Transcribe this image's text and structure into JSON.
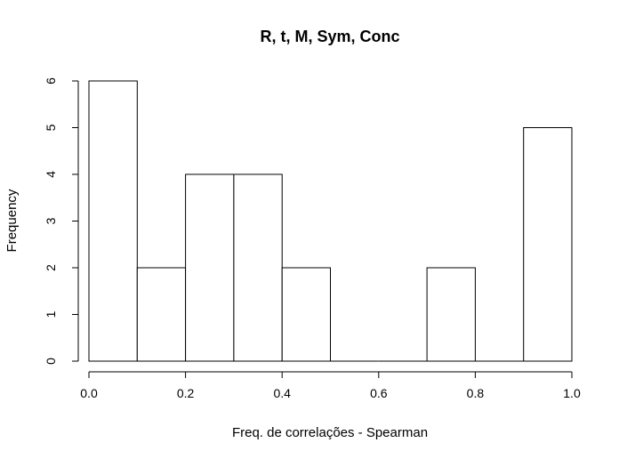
{
  "chart_data": {
    "type": "bar",
    "title": "R, t, M, Sym, Conc",
    "xlabel": "Freq. de correlações - Spearman",
    "ylabel": "Frequency",
    "bins": [
      {
        "start": 0.0,
        "end": 0.1,
        "count": 6
      },
      {
        "start": 0.1,
        "end": 0.2,
        "count": 2
      },
      {
        "start": 0.2,
        "end": 0.3,
        "count": 4
      },
      {
        "start": 0.3,
        "end": 0.4,
        "count": 4
      },
      {
        "start": 0.4,
        "end": 0.5,
        "count": 2
      },
      {
        "start": 0.5,
        "end": 0.6,
        "count": 0
      },
      {
        "start": 0.6,
        "end": 0.7,
        "count": 0
      },
      {
        "start": 0.7,
        "end": 0.8,
        "count": 2
      },
      {
        "start": 0.8,
        "end": 0.9,
        "count": 0
      },
      {
        "start": 0.9,
        "end": 1.0,
        "count": 5
      }
    ],
    "xlim": [
      0,
      1
    ],
    "ylim": [
      0,
      6
    ],
    "xticks": [
      0.0,
      0.2,
      0.4,
      0.6,
      0.8,
      1.0
    ],
    "xtick_labels": [
      "0.0",
      "0.2",
      "0.4",
      "0.6",
      "0.8",
      "1.0"
    ],
    "yticks": [
      0,
      1,
      2,
      3,
      4,
      5,
      6
    ],
    "ytick_labels": [
      "0",
      "1",
      "2",
      "3",
      "4",
      "5",
      "6"
    ],
    "grid": false,
    "colors": {
      "bar_fill": "#ffffff",
      "bar_stroke": "#000000"
    }
  }
}
